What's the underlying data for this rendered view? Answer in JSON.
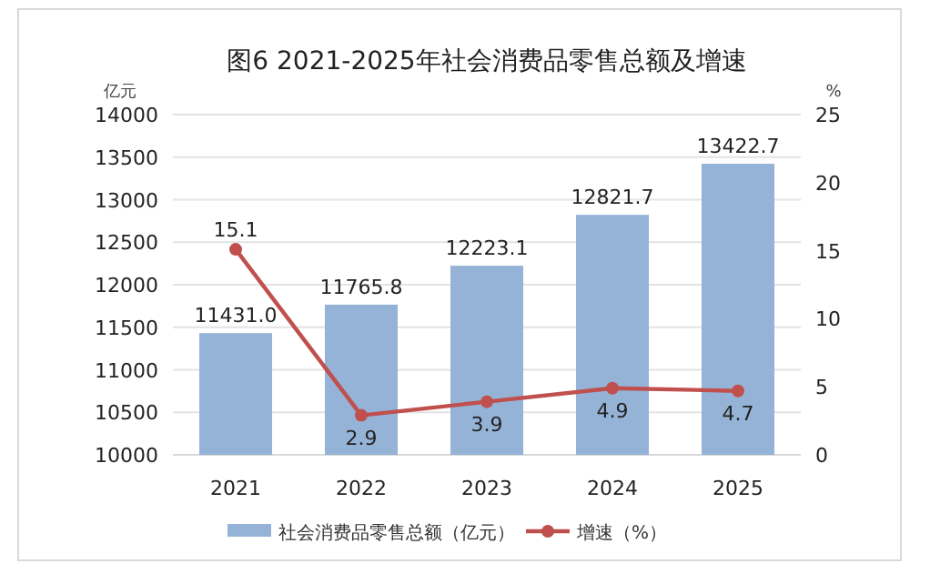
{
  "chart_data": {
    "type": "bar",
    "title": "图6  2021-2025年社会消费品零售总额及增速",
    "ylabel": "亿元",
    "y2label": "%",
    "categories": [
      "2021",
      "2022",
      "2023",
      "2024",
      "2025"
    ],
    "series": [
      {
        "name": "社会消费品零售总额（亿元）",
        "color": "#95b3d7",
        "values": [
          11431.0,
          11765.8,
          12223.1,
          12821.7,
          13422.7
        ],
        "value_labels": [
          "11431.0",
          "11765.8",
          "12223.1",
          "12821.7",
          "13422.7"
        ]
      },
      {
        "name": "增速（%）",
        "type": "line",
        "axis": "y2",
        "color": "#c0504d",
        "marker": "circle",
        "values": [
          15.1,
          2.9,
          3.9,
          4.9,
          4.7
        ]
      }
    ],
    "ylim": [
      10000,
      14000
    ],
    "yticks": [
      10000,
      10500,
      11000,
      11500,
      12000,
      12500,
      13000,
      13500,
      14000
    ],
    "y2lim": [
      0,
      25
    ],
    "y2ticks": [
      0,
      5,
      10,
      15,
      20,
      25
    ],
    "grid": "y",
    "legend": "bottom",
    "data_labels": true
  }
}
